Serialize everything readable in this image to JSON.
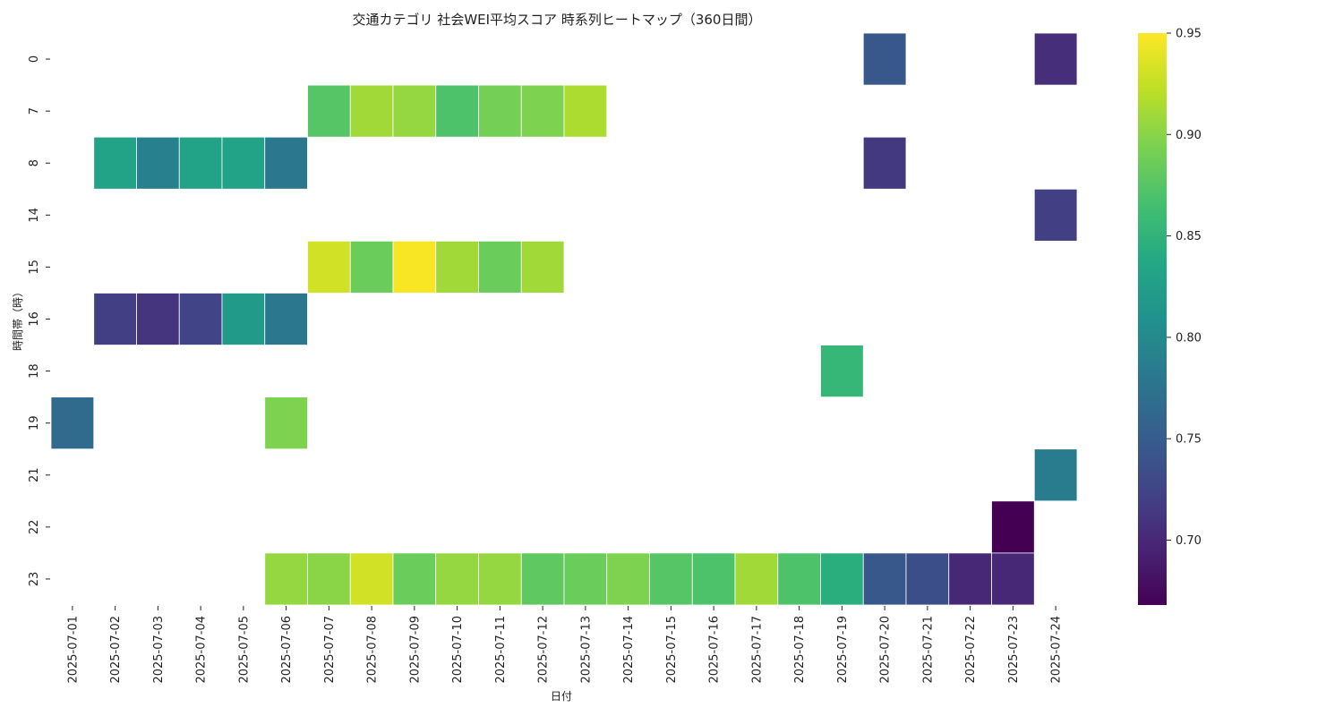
{
  "chart_data": {
    "type": "heatmap",
    "title": "交通カテゴリ 社会WEI平均スコア 時系列ヒートマップ（360日間）",
    "xlabel": "日付",
    "ylabel": "時間帯（時）",
    "colormap": "viridis",
    "color_range": [
      0.668,
      0.95
    ],
    "colorbar_ticks": [
      "0.70",
      "0.75",
      "0.80",
      "0.85",
      "0.90",
      "0.95"
    ],
    "x": [
      "2025-07-01",
      "2025-07-02",
      "2025-07-03",
      "2025-07-04",
      "2025-07-05",
      "2025-07-06",
      "2025-07-07",
      "2025-07-08",
      "2025-07-09",
      "2025-07-10",
      "2025-07-11",
      "2025-07-12",
      "2025-07-13",
      "2025-07-14",
      "2025-07-15",
      "2025-07-16",
      "2025-07-17",
      "2025-07-18",
      "2025-07-19",
      "2025-07-20",
      "2025-07-21",
      "2025-07-22",
      "2025-07-23",
      "2025-07-24"
    ],
    "y": [
      "0",
      "7",
      "8",
      "14",
      "15",
      "16",
      "18",
      "19",
      "21",
      "22",
      "23"
    ],
    "values": [
      [
        null,
        null,
        null,
        null,
        null,
        null,
        null,
        null,
        null,
        null,
        null,
        null,
        null,
        null,
        null,
        null,
        null,
        null,
        null,
        0.745,
        null,
        null,
        null,
        0.705
      ],
      [
        null,
        null,
        null,
        null,
        null,
        null,
        0.875,
        0.91,
        0.905,
        0.87,
        0.89,
        0.895,
        0.915,
        null,
        null,
        null,
        null,
        null,
        null,
        null,
        null,
        null,
        null,
        null
      ],
      [
        null,
        0.83,
        0.79,
        0.83,
        0.83,
        0.78,
        null,
        null,
        null,
        null,
        null,
        null,
        null,
        null,
        null,
        null,
        null,
        null,
        null,
        0.715,
        null,
        null,
        null,
        null
      ],
      [
        null,
        null,
        null,
        null,
        null,
        null,
        null,
        null,
        null,
        null,
        null,
        null,
        null,
        null,
        null,
        null,
        null,
        null,
        null,
        null,
        null,
        null,
        null,
        0.72
      ],
      [
        null,
        null,
        null,
        null,
        null,
        null,
        0.93,
        0.885,
        0.948,
        0.91,
        0.885,
        0.91,
        null,
        null,
        null,
        null,
        null,
        null,
        null,
        null,
        null,
        null,
        null,
        null
      ],
      [
        null,
        0.72,
        0.71,
        0.725,
        0.82,
        0.78,
        null,
        null,
        null,
        null,
        null,
        null,
        null,
        null,
        null,
        null,
        null,
        null,
        null,
        null,
        null,
        null,
        null,
        null
      ],
      [
        null,
        null,
        null,
        null,
        null,
        null,
        null,
        null,
        null,
        null,
        null,
        null,
        null,
        null,
        null,
        null,
        null,
        null,
        0.855,
        null,
        null,
        null,
        null,
        null
      ],
      [
        0.765,
        null,
        null,
        null,
        null,
        0.895,
        null,
        null,
        null,
        null,
        null,
        null,
        null,
        null,
        null,
        null,
        null,
        null,
        null,
        null,
        null,
        null,
        null,
        null
      ],
      [
        null,
        null,
        null,
        null,
        null,
        null,
        null,
        null,
        null,
        null,
        null,
        null,
        null,
        null,
        null,
        null,
        null,
        null,
        null,
        null,
        null,
        null,
        null,
        0.785
      ],
      [
        null,
        null,
        null,
        null,
        null,
        null,
        null,
        null,
        null,
        null,
        null,
        null,
        null,
        null,
        null,
        null,
        null,
        null,
        null,
        null,
        null,
        null,
        0.668,
        null
      ],
      [
        null,
        null,
        null,
        null,
        null,
        0.905,
        0.9,
        0.93,
        0.885,
        0.905,
        0.905,
        0.88,
        0.885,
        0.895,
        0.875,
        0.87,
        0.91,
        0.87,
        0.845,
        0.745,
        0.735,
        0.7,
        0.7,
        null
      ]
    ]
  }
}
